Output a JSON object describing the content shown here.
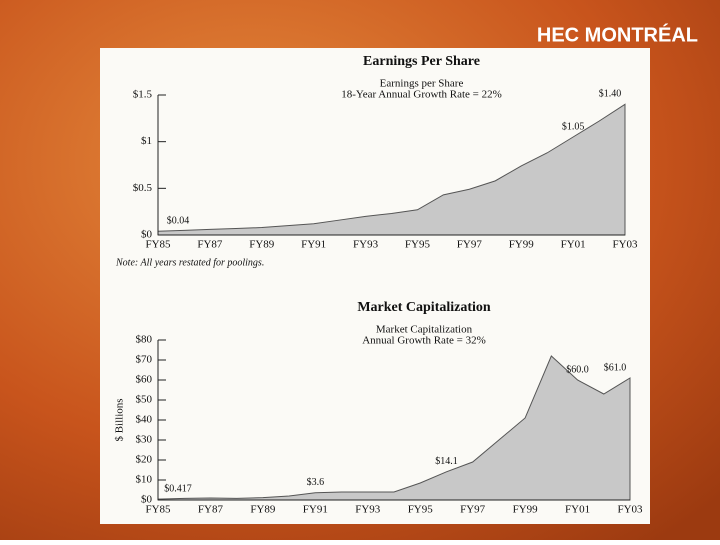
{
  "logo": "HEC MONTRÉAL",
  "chart_data": [
    {
      "type": "area",
      "title": "Earnings Per Share",
      "subtitle": [
        "Earnings per Share",
        "18-Year Annual Growth Rate = 22%"
      ],
      "categories": [
        "FY85",
        null,
        "FY87",
        null,
        "FY89",
        null,
        "FY91",
        null,
        "FY93",
        null,
        "FY95",
        null,
        "FY97",
        null,
        "FY99",
        null,
        "FY01",
        null,
        "FY03"
      ],
      "values": [
        0.04,
        0.05,
        0.06,
        0.07,
        0.08,
        0.1,
        0.12,
        0.16,
        0.2,
        0.23,
        0.27,
        0.43,
        0.49,
        0.58,
        0.74,
        0.88,
        1.05,
        1.22,
        1.4
      ],
      "value_labels": [
        "$0.04",
        null,
        null,
        null,
        null,
        null,
        null,
        null,
        null,
        null,
        null,
        null,
        null,
        null,
        null,
        null,
        "$1.05",
        null,
        "$1.40"
      ],
      "color": "#c8c8c8",
      "ylim": [
        0,
        1.5
      ],
      "yticks": [
        {
          "value": 0,
          "label": "$0"
        },
        {
          "value": 0.5,
          "label": "$0.5"
        },
        {
          "value": 1,
          "label": "$1"
        },
        {
          "value": 1.5,
          "label": "$1.5"
        }
      ],
      "note": "Note: All years restated for poolings."
    },
    {
      "type": "area",
      "title": "Market Capitalization",
      "subtitle": [
        "Market Capitalization",
        "Annual Growth Rate = 32%"
      ],
      "ylabel": "$ Billions",
      "categories": [
        "FY85",
        null,
        "FY87",
        null,
        "FY89",
        null,
        "FY91",
        null,
        "FY93",
        null,
        "FY95",
        null,
        "FY97",
        null,
        "FY99",
        null,
        "FY01",
        null,
        "FY03"
      ],
      "values": [
        0.417,
        0.8,
        1.0,
        0.8,
        1.2,
        2.0,
        3.6,
        4,
        4,
        4,
        8.5,
        14.1,
        19,
        30,
        41,
        72,
        60,
        53,
        61
      ],
      "value_labels": [
        "$0.417",
        null,
        null,
        null,
        null,
        null,
        "$3.6",
        null,
        null,
        null,
        null,
        "$14.1",
        null,
        null,
        null,
        null,
        "$60.0",
        null,
        "$61.0"
      ],
      "color": "#c8c8c8",
      "ylim": [
        0,
        80
      ],
      "yticks": [
        {
          "value": 0,
          "label": "$0"
        },
        {
          "value": 10,
          "label": "$10"
        },
        {
          "value": 20,
          "label": "$20"
        },
        {
          "value": 30,
          "label": "$30"
        },
        {
          "value": 40,
          "label": "$40"
        },
        {
          "value": 50,
          "label": "$50"
        },
        {
          "value": 60,
          "label": "$60"
        },
        {
          "value": 70,
          "label": "$70"
        },
        {
          "value": 80,
          "label": "$80"
        }
      ]
    }
  ]
}
